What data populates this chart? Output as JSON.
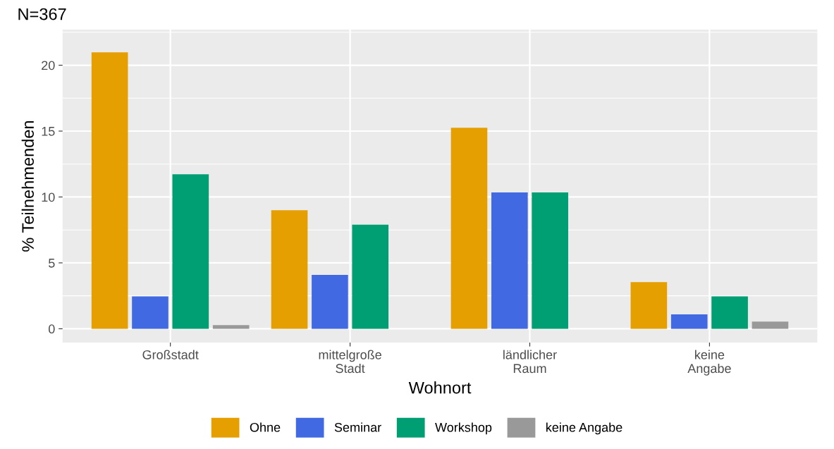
{
  "chart_data": {
    "type": "bar",
    "title": "N=367",
    "xlabel": "Wohnort",
    "ylabel": "% Teilnehmenden",
    "categories": [
      "Großstadt",
      "mittelgroße\nStadt",
      "ländlicher\nRaum",
      "keine\nAngabe"
    ],
    "series": [
      {
        "name": "Ohne",
        "color": "#e69f00",
        "values": [
          20.98,
          8.99,
          15.26,
          3.54
        ]
      },
      {
        "name": "Seminar",
        "color": "#4169e1",
        "values": [
          2.45,
          4.09,
          10.35,
          1.09
        ]
      },
      {
        "name": "Workshop",
        "color": "#009e73",
        "values": [
          11.72,
          7.9,
          10.35,
          2.45
        ]
      },
      {
        "name": "keine Angabe",
        "color": "#999999",
        "values": [
          0.27,
          null,
          null,
          0.54
        ]
      }
    ],
    "ylim": [
      -1.05,
      22.7
    ],
    "yticks": [
      0,
      {
        "value": 2.5,
        "label": null
      },
      5,
      {
        "value": 7.5,
        "label": null
      },
      10,
      {
        "value": 12.5,
        "label": null
      },
      15,
      {
        "value": 17.5,
        "label": null
      },
      20,
      {
        "value": 22.5,
        "label": null
      }
    ],
    "grid": true,
    "legend": "bottom"
  }
}
